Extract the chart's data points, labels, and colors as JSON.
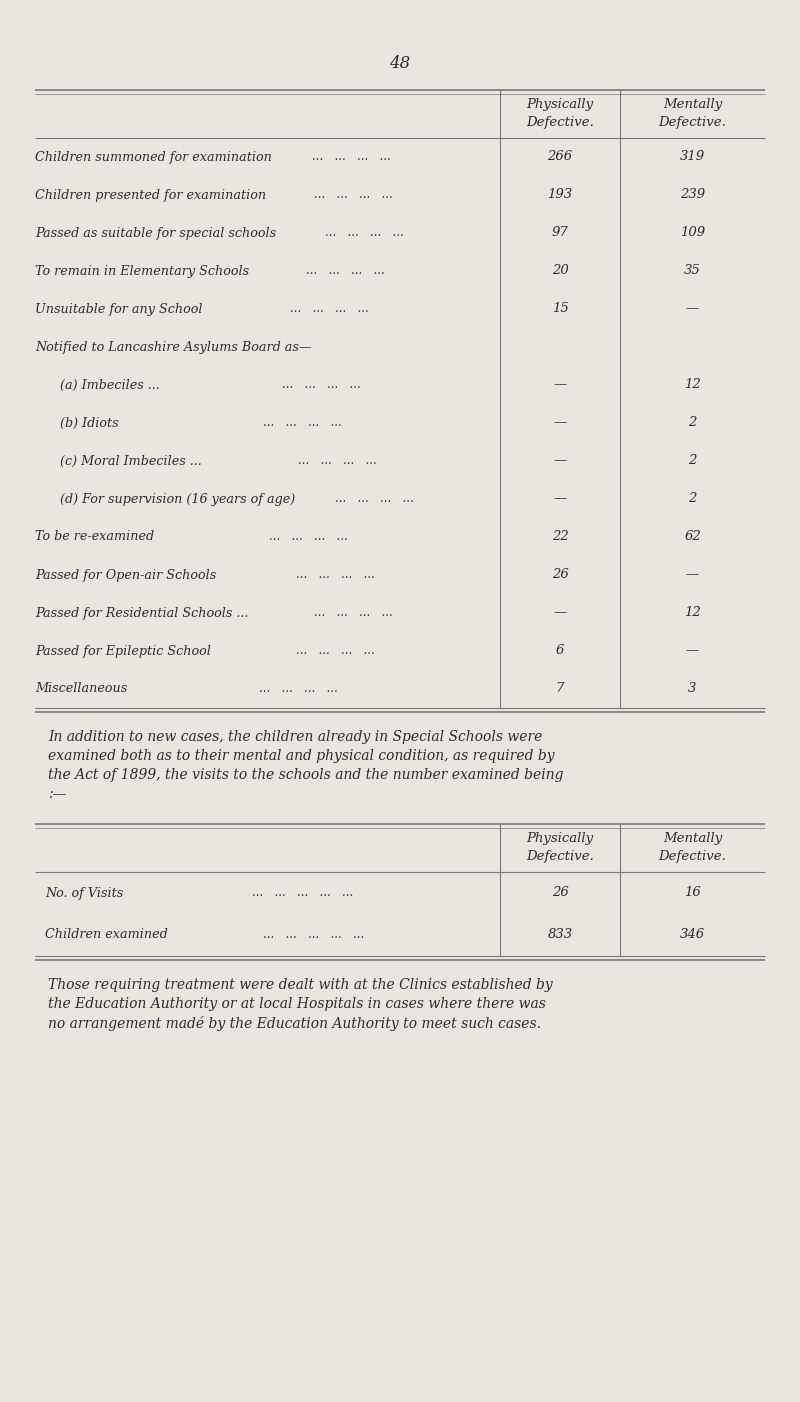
{
  "page_number": "48",
  "bg_color": "#e9e6df",
  "text_color": "#2c2c2c",
  "table1_rows": [
    {
      "label": "Children summoned for examination",
      "indent": 0,
      "dots": true,
      "phys": "266",
      "ment": "319"
    },
    {
      "label": "Children presented for examination",
      "indent": 0,
      "dots": true,
      "phys": "193",
      "ment": "239"
    },
    {
      "label": "Passed as suitable for special schools",
      "indent": 0,
      "dots": true,
      "phys": "97",
      "ment": "109"
    },
    {
      "label": "To remain in Elementary Schools",
      "indent": 0,
      "dots": true,
      "phys": "20",
      "ment": "35"
    },
    {
      "label": "Unsuitable for any School",
      "indent": 0,
      "dots": true,
      "phys": "15",
      "ment": "—"
    },
    {
      "label": "Notified to Lancashire Asylums Board as—",
      "indent": 0,
      "dots": false,
      "phys": "",
      "ment": ""
    },
    {
      "label": "(a) Imbeciles ...",
      "indent": 1,
      "dots": true,
      "phys": "—",
      "ment": "12"
    },
    {
      "label": "(b) Idiots",
      "indent": 1,
      "dots": true,
      "phys": "—",
      "ment": "2"
    },
    {
      "label": "(c) Moral Imbeciles ...",
      "indent": 1,
      "dots": true,
      "phys": "—",
      "ment": "2"
    },
    {
      "label": "(d) For supervision (16 years of age)",
      "indent": 1,
      "dots": true,
      "phys": "—",
      "ment": "2"
    },
    {
      "label": "To be re-examined",
      "indent": 0,
      "dots": true,
      "phys": "22",
      "ment": "62"
    },
    {
      "label": "Passed for Open-air Schools",
      "indent": 0,
      "dots": true,
      "phys": "26",
      "ment": "—"
    },
    {
      "label": "Passed for Residential Schools ...",
      "indent": 0,
      "dots": true,
      "phys": "—",
      "ment": "12"
    },
    {
      "label": "Passed for Epileptic School",
      "indent": 0,
      "dots": true,
      "phys": "6",
      "ment": "—"
    },
    {
      "label": "Miscellaneous",
      "indent": 0,
      "dots": true,
      "phys": "7",
      "ment": "3"
    }
  ],
  "paragraph": "In addition to new cases, the children already in Special Schools were examined both as to their mental and physical condition, as required by the Act of 1899, the visits to the schools and the number examined being :—",
  "table2_rows": [
    {
      "label": "No. of Visits",
      "dots": true,
      "phys": "26",
      "ment": "16"
    },
    {
      "label": "Children examined",
      "dots": true,
      "phys": "833",
      "ment": "346"
    }
  ],
  "paragraph2": "Those requiring treatment were dealt with at the Clinics established by the Education Authority or at local Hospitals in cases where there was no arrangement madé by the Education Authority to meet such cases."
}
